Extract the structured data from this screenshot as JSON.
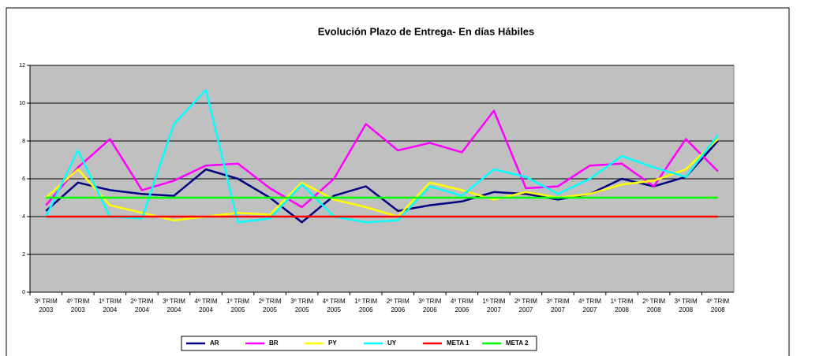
{
  "chart_data": {
    "type": "line",
    "title": "Evolución Plazo de Entrega- En días Hábiles",
    "categories": [
      "3º TRIM\n2003",
      "4º TRIM\n2003",
      "1º TRIM\n2004",
      "2º TRIM\n2004",
      "3º TRIM\n2004",
      "4º TRIM\n2004",
      "1º TRIM\n2005",
      "2º TRIM\n2005",
      "3º TRIM\n2005",
      "4º TRIM\n2005",
      "1º TRIM\n2006",
      "2º TRIM\n2006",
      "3º TRIM\n2006",
      "4º TRIM\n2006",
      "1º TRIM\n2007",
      "2º TRIM\n2007",
      "3º TRIM\n2007",
      "4º TRIM\n2007",
      "1º TRIM\n2008",
      "2º TRIM\n2008",
      "3º TRIM\n2008",
      "4º TRIM\n2008"
    ],
    "series": [
      {
        "name": "AR",
        "color": "#000080",
        "values": [
          4.3,
          5.8,
          5.4,
          5.2,
          5.1,
          6.5,
          6.0,
          5.0,
          3.7,
          5.1,
          5.6,
          4.3,
          4.6,
          4.8,
          5.3,
          5.2,
          4.9,
          5.2,
          6.0,
          5.6,
          6.1,
          8.0
        ]
      },
      {
        "name": "BR",
        "color": "#ff00ff",
        "values": [
          4.6,
          6.6,
          8.1,
          5.4,
          5.9,
          6.7,
          6.8,
          5.5,
          4.5,
          6.0,
          8.9,
          7.5,
          7.9,
          7.4,
          9.6,
          5.5,
          5.6,
          6.7,
          6.8,
          5.6,
          8.1,
          6.4
        ]
      },
      {
        "name": "PY",
        "color": "#ffff00",
        "values": [
          5.0,
          6.5,
          4.6,
          4.2,
          3.8,
          4.0,
          4.2,
          4.1,
          5.8,
          4.9,
          4.5,
          4.0,
          5.8,
          5.4,
          4.9,
          5.3,
          5.0,
          5.2,
          5.7,
          5.9,
          6.5,
          8.1
        ]
      },
      {
        "name": "UY",
        "color": "#00ffff",
        "values": [
          4.0,
          7.5,
          4.0,
          3.9,
          8.9,
          10.7,
          3.7,
          3.9,
          5.7,
          4.0,
          3.7,
          3.8,
          5.6,
          5.1,
          6.5,
          6.1,
          5.2,
          6.0,
          7.2,
          6.6,
          6.1,
          8.3
        ]
      },
      {
        "name": "META 1",
        "color": "#ff0000",
        "values": [
          4,
          4,
          4,
          4,
          4,
          4,
          4,
          4,
          4,
          4,
          4,
          4,
          4,
          4,
          4,
          4,
          4,
          4,
          4,
          4,
          4,
          4
        ]
      },
      {
        "name": "META 2",
        "color": "#00ff00",
        "values": [
          5,
          5,
          5,
          5,
          5,
          5,
          5,
          5,
          5,
          5,
          5,
          5,
          5,
          5,
          5,
          5,
          5,
          5,
          5,
          5,
          5,
          5
        ]
      }
    ],
    "ylim": [
      0,
      12
    ],
    "yticks": [
      0,
      2,
      4,
      6,
      8,
      10,
      12
    ],
    "grid": true,
    "legend": "bottom"
  }
}
